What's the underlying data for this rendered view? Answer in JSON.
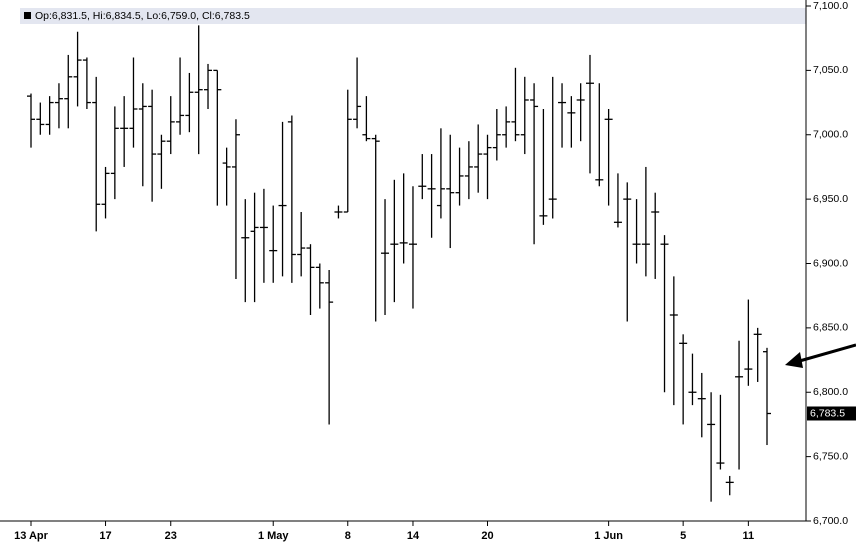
{
  "chart_data": {
    "type": "ohlc",
    "header": "Op:6,831.5, Hi:6,834.5, Lo:6,759.0, Cl:6,783.5",
    "categories": [
      "13 Apr",
      null,
      null,
      null,
      null,
      null,
      null,
      null,
      "17",
      null,
      null,
      null,
      null,
      null,
      null,
      "23",
      null,
      null,
      null,
      null,
      null,
      null,
      null,
      null,
      null,
      null,
      "1 May",
      null,
      null,
      null,
      null,
      null,
      null,
      null,
      "8",
      null,
      null,
      null,
      null,
      null,
      null,
      "14",
      null,
      null,
      null,
      null,
      null,
      null,
      null,
      "20",
      null,
      null,
      null,
      null,
      null,
      null,
      null,
      null,
      null,
      null,
      null,
      null,
      "1 Jun",
      null,
      null,
      null,
      null,
      null,
      null,
      null,
      "5",
      null,
      null,
      null,
      null,
      null,
      null,
      "11",
      null,
      null
    ],
    "series": {
      "open": [
        7030,
        7012,
        7008,
        7025,
        7028,
        7045,
        7058,
        7025,
        6946,
        6970,
        7005,
        7005,
        7020,
        7022,
        6985,
        6995,
        7010,
        7015,
        7033,
        7035,
        7050,
        6978,
        6975,
        6920,
        6925,
        6928,
        6910,
        6945,
        7010,
        6907,
        6912,
        6897,
        6885,
        6940,
        6940,
        7012,
        7000,
        6997,
        6908,
        6915,
        6916,
        6915,
        6960,
        6958,
        6945,
        6958,
        6955,
        6968,
        6975,
        6985,
        6990,
        7000,
        7010,
        7000,
        7027,
        6937,
        6950,
        7025,
        7017,
        7027,
        7040,
        6965,
        7012,
        6932,
        6950,
        6915,
        6915,
        6940,
        6915,
        6860,
        6838,
        6800,
        6795,
        6775,
        6745,
        6730,
        6812,
        6818,
        6845,
        6831.5
      ],
      "high": [
        7032,
        7025,
        7030,
        7040,
        7062,
        7080,
        7060,
        7045,
        6975,
        7022,
        7030,
        7060,
        7040,
        7035,
        7000,
        7030,
        7060,
        7048,
        7085,
        7055,
        7050,
        6990,
        7012,
        6950,
        6955,
        6958,
        6945,
        7010,
        7015,
        6940,
        6915,
        6900,
        6895,
        6945,
        7035,
        7060,
        7030,
        7000,
        6950,
        6965,
        6970,
        6960,
        6985,
        6985,
        7005,
        7000,
        6990,
        6995,
        7008,
        7000,
        7020,
        7022,
        7052,
        7045,
        7040,
        7020,
        7045,
        7040,
        7030,
        7040,
        7062,
        7040,
        7020,
        6970,
        6963,
        6950,
        6975,
        6955,
        6922,
        6890,
        6845,
        6830,
        6815,
        6800,
        6798,
        6735,
        6840,
        6872,
        6850,
        6834.5
      ],
      "low": [
        6990,
        7000,
        7000,
        7005,
        7005,
        7022,
        7020,
        6925,
        6935,
        6950,
        6975,
        6990,
        6960,
        6948,
        6958,
        6985,
        7000,
        7002,
        6985,
        7020,
        6945,
        6945,
        6888,
        6870,
        6870,
        6885,
        6885,
        6890,
        6885,
        6890,
        6860,
        6865,
        6775,
        6935,
        6940,
        7005,
        6995,
        6855,
        6860,
        6870,
        6900,
        6865,
        6950,
        6920,
        6935,
        6912,
        6945,
        6950,
        6955,
        6950,
        6980,
        6990,
        6995,
        6985,
        6915,
        6930,
        6935,
        6990,
        6990,
        6995,
        6970,
        6960,
        6945,
        6928,
        6855,
        6900,
        6890,
        6888,
        6800,
        6790,
        6775,
        6790,
        6765,
        6715,
        6740,
        6720,
        6740,
        6805,
        6808,
        6759
      ],
      "close": [
        7012,
        7008,
        7025,
        7028,
        7045,
        7058,
        7025,
        6946,
        6970,
        7005,
        7005,
        7020,
        7022,
        6985,
        6995,
        7010,
        7015,
        7033,
        7035,
        7050,
        7035,
        6975,
        7000,
        6920,
        6928,
        6928,
        6910,
        6945,
        6907,
        6912,
        6897,
        6885,
        6870,
        6940,
        7012,
        7022,
        6997,
        6995,
        6908,
        6915,
        6916,
        6915,
        6960,
        6958,
        6958,
        6955,
        6968,
        6975,
        6985,
        6990,
        7000,
        7010,
        7000,
        7027,
        7022,
        6937,
        6950,
        7025,
        7017,
        7027,
        7040,
        6965,
        7012,
        6932,
        6950,
        6915,
        6915,
        6940,
        6915,
        6860,
        6838,
        6800,
        6795,
        6775,
        6745,
        6730,
        6812,
        6818,
        6845,
        6783.5
      ]
    },
    "last_price": {
      "value": 6783.5,
      "label": "6,783.5"
    },
    "ylim": [
      6700,
      7100
    ],
    "yticks": [
      {
        "value": 6700,
        "label": "6,700.0"
      },
      {
        "value": 6750,
        "label": "6,750.0"
      },
      {
        "value": 6800,
        "label": "6,800.0"
      },
      {
        "value": 6850,
        "label": "6,850.0"
      },
      {
        "value": 6900,
        "label": "6,900.0"
      },
      {
        "value": 6950,
        "label": "6,950.0"
      },
      {
        "value": 7000,
        "label": "7,000.0"
      },
      {
        "value": 7050,
        "label": "7,050.0"
      },
      {
        "value": 7100,
        "label": "7,100.0"
      }
    ],
    "color": "#000000"
  }
}
